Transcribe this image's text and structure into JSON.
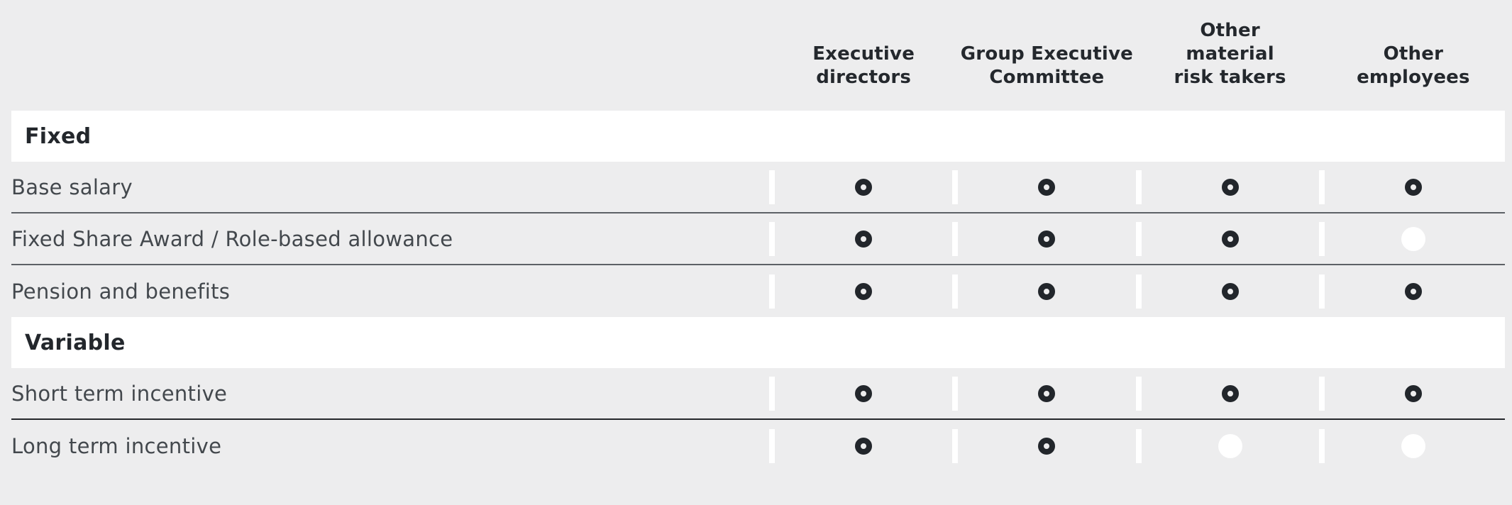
{
  "page": {
    "background": "#ededee",
    "panel_background": "#ffffff"
  },
  "colors": {
    "ring_stroke": "#22262b",
    "white_dot_fill": "#ffffff",
    "divider_light": "#5d6166",
    "divider_dark": "#24272b",
    "header_text": "#24282d",
    "row_text": "#43484d",
    "section_text": "#23272c"
  },
  "table": {
    "column_headers": [
      {
        "label": "Executive\ndirectors"
      },
      {
        "label": "Group Executive\nCommittee"
      },
      {
        "label": "Other\nmaterial\nrisk takers"
      },
      {
        "label": "Other\nemployees"
      }
    ],
    "symbols": {
      "ring": "open-circle",
      "dot": "white-filled-circle"
    },
    "sections": [
      {
        "title": "Fixed",
        "rows": [
          {
            "label": "Base salary",
            "cells": [
              "ring",
              "ring",
              "ring",
              "ring"
            ],
            "divider": "light"
          },
          {
            "label": "Fixed Share Award / Role-based allowance",
            "cells": [
              "ring",
              "ring",
              "ring",
              "dot"
            ],
            "divider": "light"
          },
          {
            "label": "Pension and benefits",
            "cells": [
              "ring",
              "ring",
              "ring",
              "ring"
            ],
            "divider": "none"
          }
        ]
      },
      {
        "title": "Variable",
        "rows": [
          {
            "label": "Short term incentive",
            "cells": [
              "ring",
              "ring",
              "ring",
              "ring"
            ],
            "divider": "dark"
          },
          {
            "label": "Long term incentive",
            "cells": [
              "ring",
              "ring",
              "dot",
              "dot"
            ],
            "divider": "none"
          }
        ]
      }
    ]
  }
}
